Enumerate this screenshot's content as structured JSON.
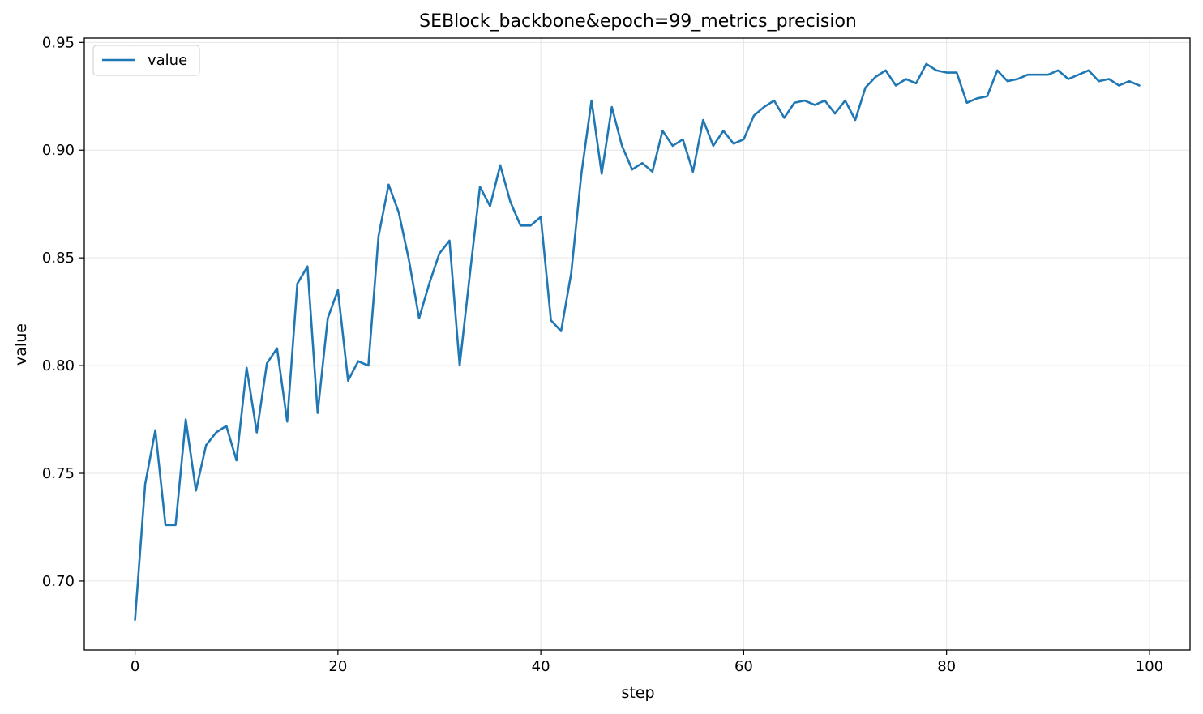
{
  "chart_data": {
    "type": "line",
    "title": "SEBlock_backbone&epoch=99_metrics_precision",
    "xlabel": "step",
    "ylabel": "value",
    "xlim": [
      -5,
      104
    ],
    "ylim": [
      0.668,
      0.952
    ],
    "xticks": [
      0,
      20,
      40,
      60,
      80,
      100
    ],
    "yticks": [
      0.7,
      0.75,
      0.8,
      0.85,
      0.9,
      0.95
    ],
    "xtick_labels": [
      "0",
      "20",
      "40",
      "60",
      "80",
      "100"
    ],
    "ytick_labels": [
      "0.70",
      "0.75",
      "0.80",
      "0.85",
      "0.90",
      "0.95"
    ],
    "grid": true,
    "legend": {
      "position": "top-left",
      "entries": [
        "value"
      ]
    },
    "series": [
      {
        "name": "value",
        "color": "#1f77b4",
        "x": [
          0,
          1,
          2,
          3,
          4,
          5,
          6,
          7,
          8,
          9,
          10,
          11,
          12,
          13,
          14,
          15,
          16,
          17,
          18,
          19,
          20,
          21,
          22,
          23,
          24,
          25,
          26,
          27,
          28,
          29,
          30,
          31,
          32,
          33,
          34,
          35,
          36,
          37,
          38,
          39,
          40,
          41,
          42,
          43,
          44,
          45,
          46,
          47,
          48,
          49,
          50,
          51,
          52,
          53,
          54,
          55,
          56,
          57,
          58,
          59,
          60,
          61,
          62,
          63,
          64,
          65,
          66,
          67,
          68,
          69,
          70,
          71,
          72,
          73,
          74,
          75,
          76,
          77,
          78,
          79,
          80,
          81,
          82,
          83,
          84,
          85,
          86,
          87,
          88,
          89,
          90,
          91,
          92,
          93,
          94,
          95,
          96,
          97,
          98,
          99
        ],
        "values": [
          0.682,
          0.745,
          0.77,
          0.726,
          0.726,
          0.775,
          0.742,
          0.763,
          0.769,
          0.772,
          0.756,
          0.799,
          0.769,
          0.801,
          0.808,
          0.774,
          0.838,
          0.846,
          0.778,
          0.822,
          0.835,
          0.793,
          0.802,
          0.8,
          0.86,
          0.884,
          0.871,
          0.849,
          0.822,
          0.838,
          0.852,
          0.858,
          0.8,
          0.842,
          0.883,
          0.874,
          0.893,
          0.876,
          0.865,
          0.865,
          0.869,
          0.821,
          0.816,
          0.843,
          0.889,
          0.923,
          0.889,
          0.92,
          0.902,
          0.891,
          0.894,
          0.89,
          0.909,
          0.902,
          0.905,
          0.89,
          0.914,
          0.902,
          0.909,
          0.903,
          0.905,
          0.916,
          0.92,
          0.923,
          0.915,
          0.922,
          0.923,
          0.921,
          0.923,
          0.917,
          0.923,
          0.914,
          0.929,
          0.934,
          0.937,
          0.93,
          0.933,
          0.931,
          0.94,
          0.937,
          0.936,
          0.936,
          0.922,
          0.924,
          0.925,
          0.937,
          0.932,
          0.933,
          0.935,
          0.935,
          0.935,
          0.937,
          0.933,
          0.935,
          0.937,
          0.932,
          0.933,
          0.93,
          0.932,
          0.93
        ]
      }
    ]
  }
}
